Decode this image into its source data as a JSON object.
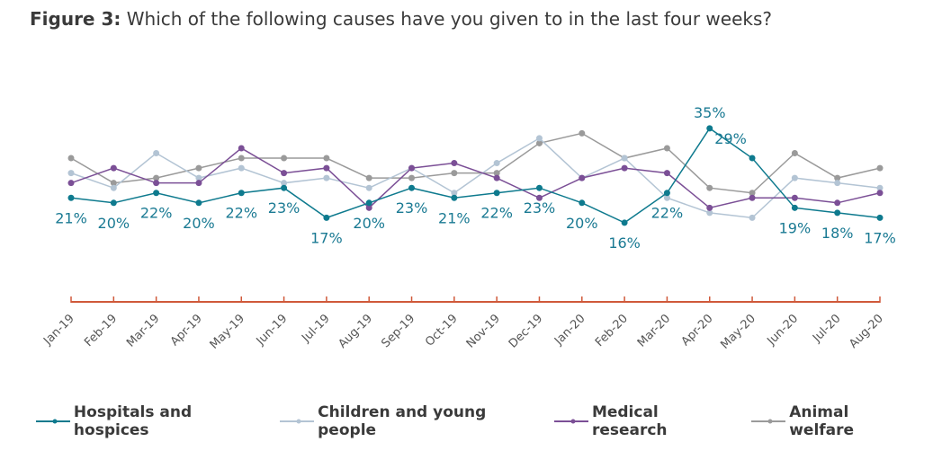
{
  "title": {
    "lead": "Figure 3:",
    "text": "Which of the following causes have you given to in the last four weeks?"
  },
  "colors": {
    "axis": "#d0593a",
    "tick_label": "#555555",
    "data_label": "#1a7a93"
  },
  "chart_data": {
    "type": "line",
    "title": "Figure 3: Which of the following causes have you given to in the last four weeks?",
    "xlabel": "",
    "ylabel": "",
    "ylim": [
      0,
      40
    ],
    "grid": false,
    "legend_position": "bottom",
    "categories": [
      "Jan-19",
      "Feb-19",
      "Mar-19",
      "Apr-19",
      "May-19",
      "Jun-19",
      "Jul-19",
      "Aug-19",
      "Sep-19",
      "Oct-19",
      "Nov-19",
      "Dec-19",
      "Jan-20",
      "Feb-20",
      "Mar-20",
      "Apr-20",
      "May-20",
      "Jun-20",
      "Jul-20",
      "Aug-20"
    ],
    "series": [
      {
        "name": "Hospitals and hospices",
        "color": "#0e7a8e",
        "labeled": true,
        "values": [
          21,
          20,
          22,
          20,
          22,
          23,
          17,
          20,
          23,
          21,
          22,
          23,
          20,
          16,
          22,
          35,
          29,
          19,
          18,
          17
        ]
      },
      {
        "name": "Children and young people",
        "color": "#b3c4d4",
        "labeled": false,
        "values": [
          26,
          23,
          30,
          25,
          27,
          24,
          25,
          23,
          27,
          22,
          28,
          33,
          25,
          29,
          21,
          18,
          17,
          25,
          24,
          23
        ]
      },
      {
        "name": "Medical research",
        "color": "#7b4f96",
        "labeled": false,
        "values": [
          24,
          27,
          24,
          24,
          31,
          26,
          27,
          19,
          27,
          28,
          25,
          21,
          25,
          27,
          26,
          19,
          21,
          21,
          20,
          22
        ]
      },
      {
        "name": "Animal welfare",
        "color": "#9a9a9a",
        "labeled": false,
        "values": [
          29,
          24,
          25,
          27,
          29,
          29,
          29,
          25,
          25,
          26,
          26,
          32,
          34,
          29,
          31,
          23,
          22,
          30,
          25,
          27
        ]
      }
    ],
    "data_labels": [
      "21%",
      "20%",
      "22%",
      "20%",
      "22%",
      "23%",
      "17%",
      "20%",
      "23%",
      "21%",
      "22%",
      "23%",
      "20%",
      "16%",
      "22%",
      "35%",
      "29%",
      "19%",
      "18%",
      "17%"
    ]
  },
  "legend": [
    {
      "label": "Hospitals and hospices"
    },
    {
      "label": "Children and young people"
    },
    {
      "label": "Medical research"
    },
    {
      "label": "Animal welfare"
    }
  ]
}
